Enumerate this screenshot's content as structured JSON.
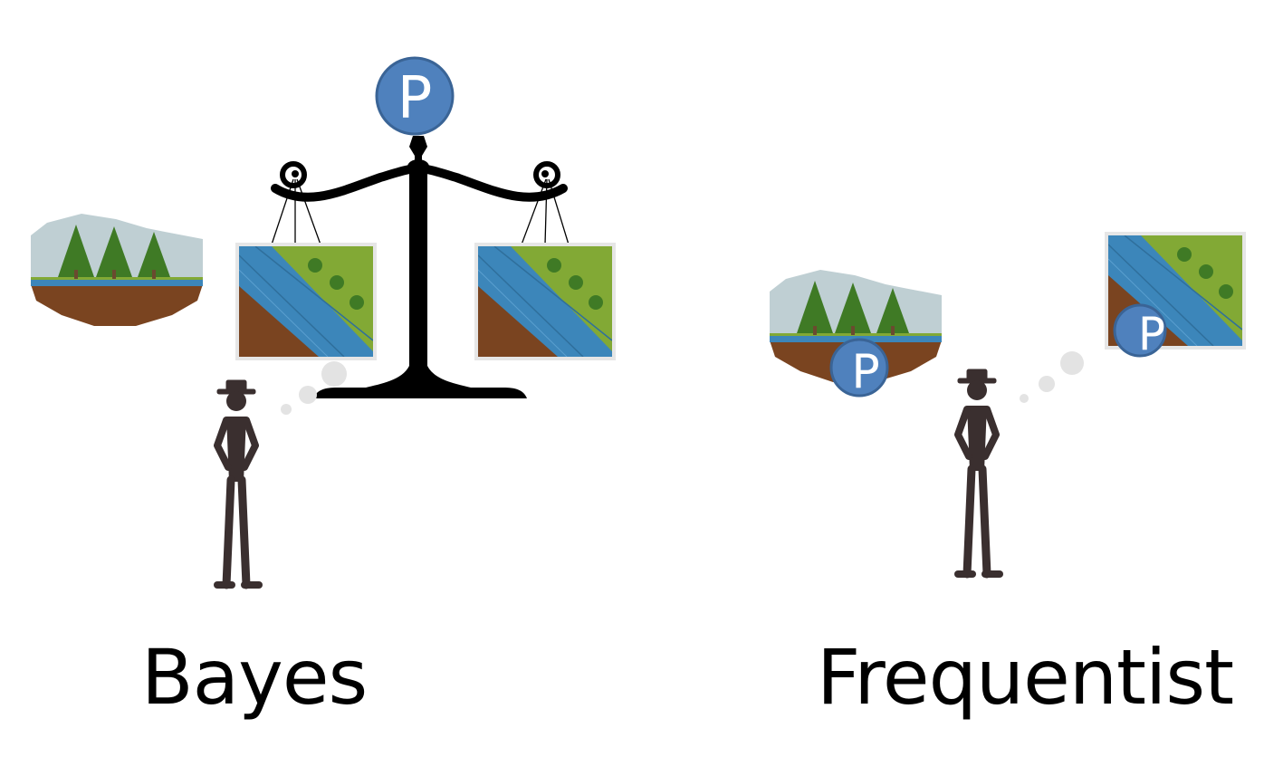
{
  "labels": {
    "bayes": "Bayes",
    "frequentist": "Frequentist"
  },
  "probability_symbol": "P",
  "colors": {
    "p_badge_fill": "#4f81bd",
    "p_badge_stroke": "#3a6496",
    "river": "#3c86ba",
    "grass": "#82a935",
    "soil": "#7a4420",
    "tree": "#3f7a25",
    "sky": "#bfcfd3",
    "person": "#3a2f2f",
    "scale": "#000000",
    "thought_bubble": "#e3e3e3",
    "frame": "#e6e6e6"
  }
}
